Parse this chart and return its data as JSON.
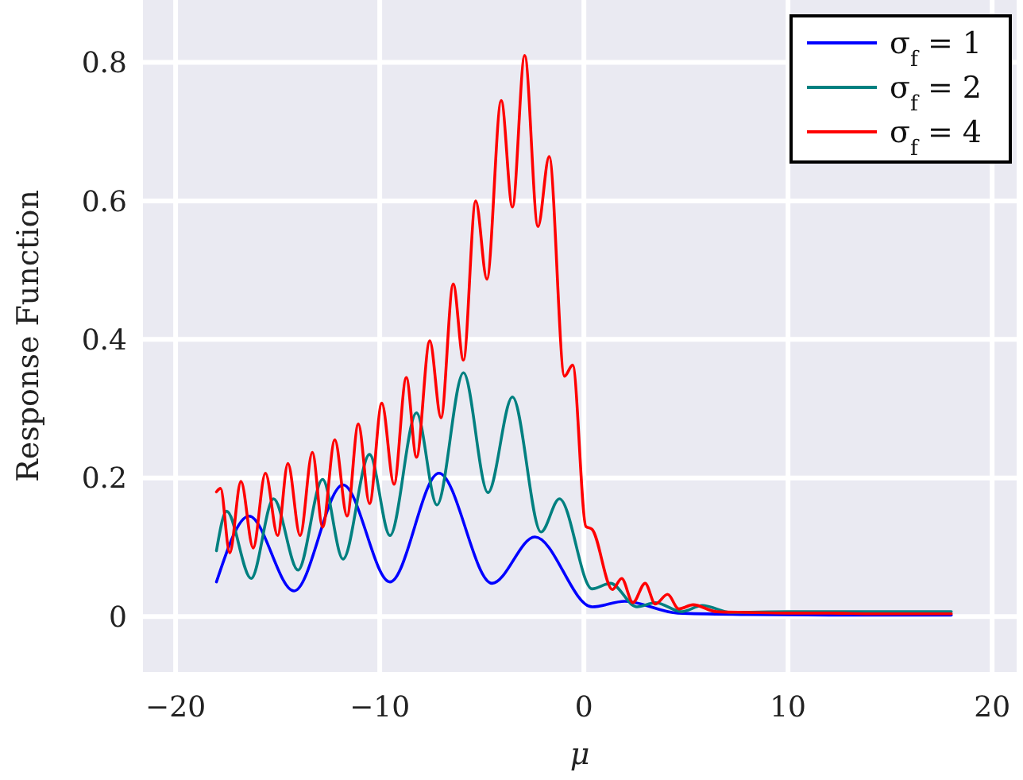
{
  "chart_data": {
    "type": "line",
    "xlabel": "μ",
    "ylabel": "Response Function",
    "xlim": [
      -21.6,
      21.2
    ],
    "ylim": [
      -0.08,
      0.89
    ],
    "xticks": [
      {
        "value": -20,
        "label": "−20"
      },
      {
        "value": -10,
        "label": "−10"
      },
      0,
      10,
      20
    ],
    "yticks": [
      0,
      0.2,
      0.4,
      0.6,
      0.8
    ],
    "grid": true,
    "legend": "top right",
    "line_style": "solid",
    "marker": "none",
    "series": [
      {
        "name": "σ$_{f}$ = 1",
        "color": "#0000ff",
        "x": [
          -18,
          -16.4,
          -14.2,
          -11.8,
          -9.5,
          -7.1,
          -4.5,
          -2.4,
          0.4,
          2.0,
          4.6,
          8,
          12,
          18
        ],
        "values": [
          0.05,
          0.145,
          0.037,
          0.19,
          0.05,
          0.207,
          0.048,
          0.115,
          0.014,
          0.022,
          0.005,
          0.003,
          0.002,
          0.002
        ]
      },
      {
        "name": "σ$_{f}$ = 2",
        "color": "#008080",
        "x": [
          -18,
          -17.5,
          -16.3,
          -15.2,
          -14.0,
          -12.8,
          -11.8,
          -10.5,
          -9.5,
          -8.2,
          -7.2,
          -5.9,
          -4.7,
          -3.5,
          -2.1,
          -1.2,
          0.4,
          1.3,
          2.6,
          3.5,
          4.8,
          5.8,
          7.2,
          10,
          14,
          18
        ],
        "values": [
          0.095,
          0.152,
          0.055,
          0.17,
          0.067,
          0.198,
          0.083,
          0.234,
          0.117,
          0.294,
          0.161,
          0.352,
          0.179,
          0.317,
          0.122,
          0.17,
          0.04,
          0.048,
          0.014,
          0.02,
          0.007,
          0.016,
          0.006,
          0.007,
          0.007,
          0.007
        ]
      },
      {
        "name": "σ$_{f}$ = 4",
        "color": "#ff0000",
        "x": [
          -18,
          -17.8,
          -17.35,
          -16.8,
          -16.2,
          -15.6,
          -15.0,
          -14.5,
          -13.9,
          -13.3,
          -12.8,
          -12.2,
          -11.6,
          -11.05,
          -10.5,
          -9.9,
          -9.3,
          -8.7,
          -8.2,
          -7.55,
          -7.0,
          -6.4,
          -5.9,
          -5.3,
          -4.75,
          -4.05,
          -3.5,
          -2.9,
          -2.25,
          -1.7,
          -0.95,
          -0.55,
          0.1,
          0.4,
          1.4,
          1.85,
          2.4,
          3.0,
          3.5,
          4.1,
          4.65,
          5.35,
          6.5,
          8,
          10,
          12,
          14,
          16,
          18
        ],
        "values": [
          0.18,
          0.185,
          0.092,
          0.195,
          0.099,
          0.207,
          0.117,
          0.221,
          0.117,
          0.237,
          0.129,
          0.255,
          0.145,
          0.278,
          0.163,
          0.308,
          0.191,
          0.345,
          0.23,
          0.398,
          0.287,
          0.48,
          0.37,
          0.6,
          0.487,
          0.745,
          0.591,
          0.81,
          0.563,
          0.664,
          0.347,
          0.363,
          0.13,
          0.126,
          0.039,
          0.055,
          0.02,
          0.048,
          0.018,
          0.032,
          0.011,
          0.017,
          0.007,
          0.006,
          0.005,
          0.005,
          0.004,
          0.004,
          0.004
        ]
      }
    ]
  }
}
